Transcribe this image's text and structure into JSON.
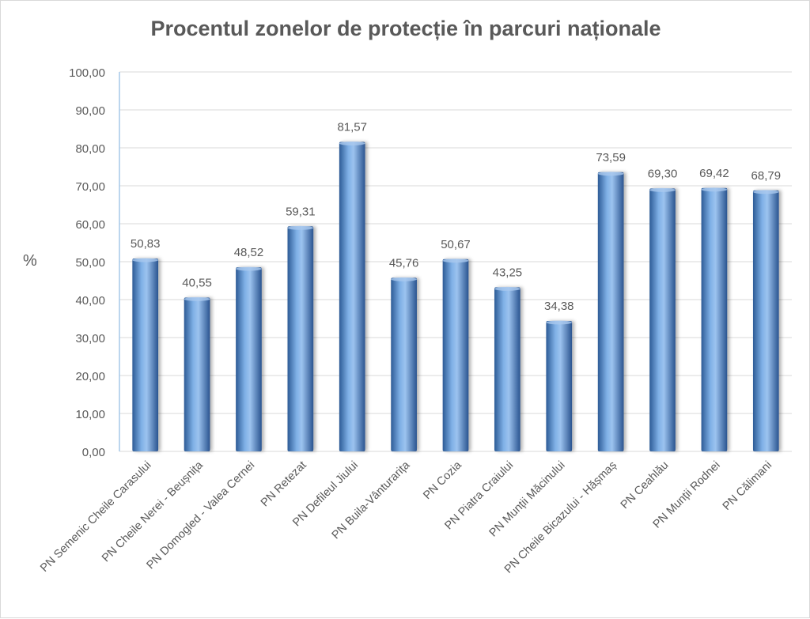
{
  "chart_data": {
    "type": "bar",
    "title": "Procentul zonelor de protecție în parcuri naționale",
    "xlabel": "",
    "ylabel": "%",
    "ylim": [
      0,
      100
    ],
    "yticks": [
      "0,00",
      "10,00",
      "20,00",
      "30,00",
      "40,00",
      "50,00",
      "60,00",
      "70,00",
      "80,00",
      "90,00",
      "100,00"
    ],
    "categories": [
      "PN Semenic Cheile Carasului",
      "PN Cheile Nerei - Beușnița",
      "PN Domogled - Valea Cernei",
      "PN Retezat",
      "PN Defileul Jiului",
      "PN Buila-Vânturarița",
      "PN Cozia",
      "PN Piatra Craiului",
      "PN Munții Măcinului",
      "PN Cheile Bicazului - Hășmaș",
      "PN Ceahlău",
      "PN Munții Rodnei",
      "PN Călimani"
    ],
    "values": [
      50.83,
      40.55,
      48.52,
      59.31,
      81.57,
      45.76,
      50.67,
      43.25,
      34.38,
      73.59,
      69.3,
      69.42,
      68.79
    ],
    "value_labels": [
      "50,83",
      "40,55",
      "48,52",
      "59,31",
      "81,57",
      "45,76",
      "50,67",
      "43,25",
      "34,38",
      "73,59",
      "69,30",
      "69,42",
      "68,79"
    ],
    "grid": true,
    "colors": {
      "bar": "#5b8fd0",
      "bar_dark": "#2d5b96",
      "bar_light": "#a9c8ee",
      "grid": "#d9d9d9",
      "axis": "#a6c8e8",
      "text": "#595959"
    }
  }
}
